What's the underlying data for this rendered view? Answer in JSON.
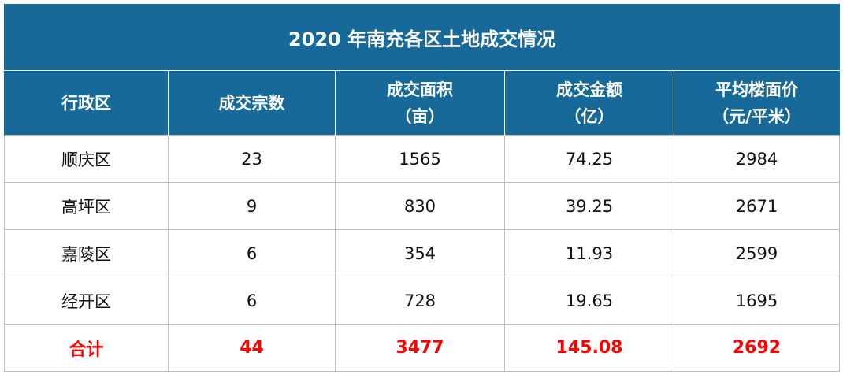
{
  "title": "2020 年南充各区土地成交情况",
  "table": {
    "header": [
      [
        "行政区"
      ],
      [
        "成交宗数"
      ],
      [
        "成交面积",
        "（亩）"
      ],
      [
        "成交金额",
        "（亿）"
      ],
      [
        "平均楼面价",
        "（元/平米）"
      ]
    ],
    "rows": [
      [
        "顺庆区",
        "23",
        "1565",
        "74.25",
        "2984"
      ],
      [
        "高坪区",
        "9",
        "830",
        "39.25",
        "2671"
      ],
      [
        "嘉陵区",
        "6",
        "354",
        "11.93",
        "2599"
      ],
      [
        "经开区",
        "6",
        "728",
        "19.65",
        "1695"
      ]
    ],
    "total": [
      "合计",
      "44",
      "3477",
      "145.08",
      "2692"
    ]
  }
}
